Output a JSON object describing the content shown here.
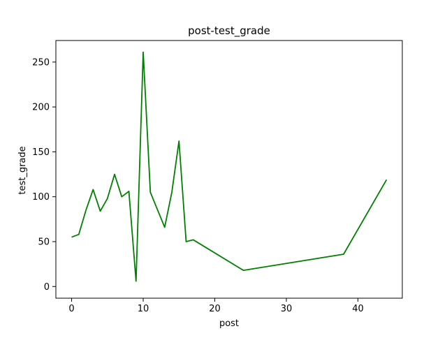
{
  "chart_data": {
    "type": "line",
    "title": "post-test_grade",
    "xlabel": "post",
    "ylabel": "test_grade",
    "xlim": [
      -2.2,
      46.2
    ],
    "ylim": [
      -13,
      274
    ],
    "xticks": [
      0,
      10,
      20,
      30,
      40
    ],
    "yticks": [
      0,
      50,
      100,
      150,
      200,
      250
    ],
    "grid": false,
    "legend": "none",
    "series": [
      {
        "color": "#008000",
        "x": [
          0,
          1,
          2,
          3,
          4,
          5,
          6,
          7,
          8,
          9,
          10,
          11,
          13,
          14,
          15,
          16,
          17,
          24,
          38,
          44
        ],
        "y": [
          55,
          58,
          85,
          108,
          84,
          98,
          125,
          100,
          106,
          6,
          261,
          105,
          66,
          105,
          162,
          50,
          52,
          18,
          36,
          119
        ]
      }
    ]
  }
}
